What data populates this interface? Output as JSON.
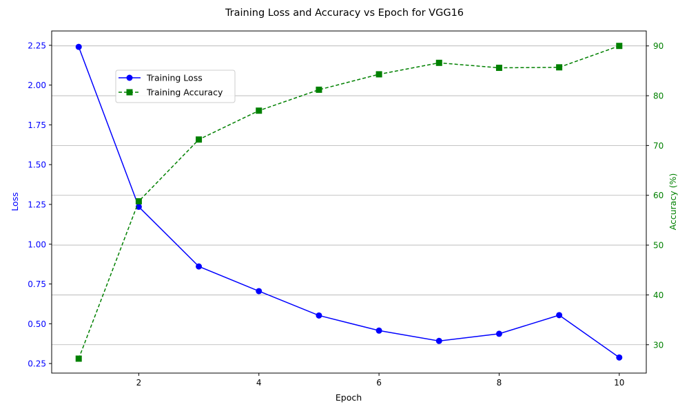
{
  "chart_data": {
    "type": "line",
    "title": "Training Loss and Accuracy vs Epoch for VGG16",
    "xlabel": "Epoch",
    "ylabel_left": "Loss",
    "ylabel_right": "Accuracy (%)",
    "x": [
      1,
      2,
      3,
      4,
      5,
      6,
      7,
      8,
      9,
      10
    ],
    "xlim": [
      0.55,
      10.45
    ],
    "xticks": [
      2,
      4,
      6,
      8,
      10
    ],
    "ylim_left": [
      0.19,
      2.34
    ],
    "yticks_left": [
      0.25,
      0.5,
      0.75,
      1.0,
      1.25,
      1.5,
      1.75,
      2.0,
      2.25
    ],
    "yticks_left_labels": [
      "0.25",
      "0.50",
      "0.75",
      "1.00",
      "1.25",
      "1.50",
      "1.75",
      "2.00",
      "2.25"
    ],
    "ylim_right": [
      24.3,
      93.0
    ],
    "yticks_right": [
      30,
      40,
      50,
      60,
      70,
      80,
      90
    ],
    "grid": "horizontal (accuracy axis)",
    "legend_position": "upper-left",
    "series": [
      {
        "name": "Training Loss",
        "axis": "left",
        "color": "#0000ff",
        "linestyle": "solid",
        "marker": "circle",
        "values": [
          2.24,
          1.235,
          0.86,
          0.705,
          0.552,
          0.457,
          0.392,
          0.437,
          0.554,
          0.288
        ]
      },
      {
        "name": "Training Accuracy",
        "axis": "right",
        "color": "#008000",
        "linestyle": "dashed",
        "marker": "square",
        "values": [
          27.2,
          58.8,
          71.2,
          77.0,
          81.2,
          84.3,
          86.6,
          85.6,
          85.7,
          90.0
        ]
      }
    ]
  }
}
